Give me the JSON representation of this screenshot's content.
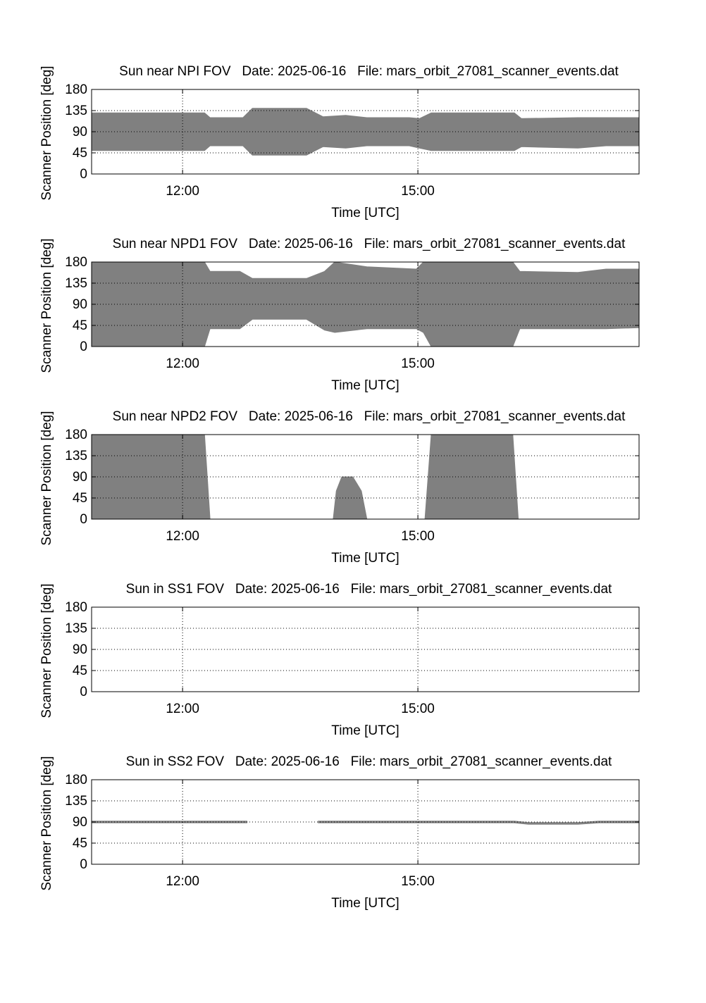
{
  "chart_data": [
    {
      "type": "area",
      "title": "Sun near NPI FOV   Date: 2025-06-16   File: mars_orbit_27081_scanner_events.dat",
      "xlabel": "Time [UTC]",
      "ylabel": "Scanner Position [deg]",
      "x": [
        10.84,
        12.28,
        12.35,
        12.77,
        12.89,
        13.58,
        13.79,
        14.08,
        14.35,
        14.89,
        15.02,
        15.17,
        16.23,
        16.32,
        17.04,
        17.4,
        17.82
      ],
      "series": [
        {
          "color": "#808080",
          "upper": [
            130,
            130,
            120,
            120,
            140,
            140,
            122,
            125,
            120,
            120,
            118,
            130,
            130,
            118,
            120,
            120,
            120
          ],
          "lower": [
            50,
            50,
            60,
            60,
            40,
            40,
            58,
            55,
            60,
            60,
            55,
            50,
            50,
            58,
            55,
            60,
            60
          ]
        }
      ],
      "xlim": [
        10.84,
        17.82
      ],
      "xticks": [
        {
          "value": 12,
          "label": "12:00"
        },
        {
          "value": 15,
          "label": "15:00"
        }
      ],
      "ylim": [
        0,
        180
      ],
      "yticks": [
        0,
        45,
        90,
        135,
        180
      ],
      "grid": true
    },
    {
      "type": "area",
      "title": "Sun near NPD1 FOV   Date: 2025-06-16   File: mars_orbit_27081_scanner_events.dat",
      "xlabel": "Time [UTC]",
      "ylabel": "Scanner Position [deg]",
      "x": [
        10.84,
        12.28,
        12.35,
        12.73,
        12.89,
        13.58,
        13.81,
        13.94,
        14.35,
        14.98,
        15.07,
        15.17,
        16.21,
        16.3,
        17.04,
        17.4,
        17.82
      ],
      "series": [
        {
          "color": "#808080",
          "upper": [
            180,
            180,
            160,
            160,
            145,
            145,
            160,
            180,
            170,
            165,
            180,
            180,
            180,
            160,
            158,
            165,
            165
          ],
          "lower": [
            0,
            0,
            38,
            38,
            58,
            58,
            35,
            30,
            38,
            38,
            30,
            0,
            0,
            38,
            38,
            38,
            40
          ]
        }
      ],
      "xlim": [
        10.84,
        17.82
      ],
      "xticks": [
        {
          "value": 12,
          "label": "12:00"
        },
        {
          "value": 15,
          "label": "15:00"
        }
      ],
      "ylim": [
        0,
        180
      ],
      "yticks": [
        0,
        45,
        90,
        135,
        180
      ],
      "grid": true
    },
    {
      "type": "area",
      "title": "Sun near NPD2 FOV   Date: 2025-06-16   File: mars_orbit_27081_scanner_events.dat",
      "xlabel": "Time [UTC]",
      "ylabel": "Scanner Position [deg]",
      "x": [
        10.84,
        12.28,
        12.35,
        13.0,
        13.92,
        13.96,
        14.03,
        14.17,
        14.28,
        14.35,
        14.8,
        15.09,
        15.17,
        16.21,
        16.28
      ],
      "series": [
        {
          "color": "#808080",
          "upper": [
            180,
            180,
            0,
            null,
            0,
            60,
            90,
            90,
            60,
            0,
            null,
            0,
            180,
            180,
            0
          ],
          "lower": [
            0,
            0,
            0,
            null,
            0,
            0,
            0,
            0,
            0,
            0,
            null,
            0,
            0,
            0,
            0
          ]
        }
      ],
      "xlim": [
        10.84,
        17.82
      ],
      "xticks": [
        {
          "value": 12,
          "label": "12:00"
        },
        {
          "value": 15,
          "label": "15:00"
        }
      ],
      "ylim": [
        0,
        180
      ],
      "yticks": [
        0,
        45,
        90,
        135,
        180
      ],
      "grid": true
    },
    {
      "type": "area",
      "title": "Sun in SS1 FOV   Date: 2025-06-16   File: mars_orbit_27081_scanner_events.dat",
      "xlabel": "Time [UTC]",
      "ylabel": "Scanner Position [deg]",
      "x": [],
      "series": [
        {
          "color": "#808080",
          "upper": [],
          "lower": []
        }
      ],
      "xlim": [
        10.84,
        17.82
      ],
      "xticks": [
        {
          "value": 12,
          "label": "12:00"
        },
        {
          "value": 15,
          "label": "15:00"
        }
      ],
      "ylim": [
        0,
        180
      ],
      "yticks": [
        0,
        45,
        90,
        135,
        180
      ],
      "grid": true
    },
    {
      "type": "area",
      "title": "Sun in SS2 FOV   Date: 2025-06-16   File: mars_orbit_27081_scanner_events.dat",
      "xlabel": "Time [UTC]",
      "ylabel": "Scanner Position [deg]",
      "x": [
        10.84,
        12.82,
        13.3,
        13.73,
        16.23,
        16.41,
        17.04,
        17.31,
        17.82
      ],
      "series": [
        {
          "color": "#808080",
          "upper": [
            92,
            92,
            null,
            92,
            92,
            89,
            89,
            92,
            92
          ],
          "lower": [
            88,
            88,
            null,
            88,
            88,
            85,
            85,
            88,
            88
          ]
        }
      ],
      "xlim": [
        10.84,
        17.82
      ],
      "xticks": [
        {
          "value": 12,
          "label": "12:00"
        },
        {
          "value": 15,
          "label": "15:00"
        }
      ],
      "ylim": [
        0,
        180
      ],
      "yticks": [
        0,
        45,
        90,
        135,
        180
      ],
      "grid": true
    }
  ]
}
